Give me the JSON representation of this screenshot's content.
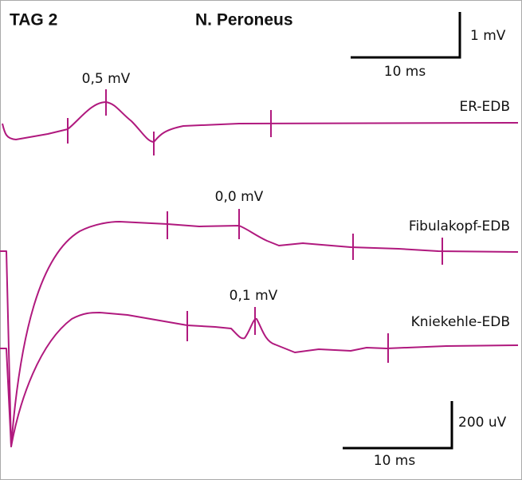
{
  "header": {
    "title": "TAG 2",
    "nerve": "N. Peroneus"
  },
  "scale_top": {
    "amplitude": "1 mV",
    "time": "10 ms"
  },
  "traces": [
    {
      "name": "ER-EDB",
      "amplitude": "0,5 mV"
    },
    {
      "name": "Fibulakopf-EDB",
      "amplitude": "0,0 mV"
    },
    {
      "name": "Kniekehle-EDB",
      "amplitude": "0,1 mV"
    }
  ],
  "scale_bottom": {
    "amplitude": "200 uV",
    "time": "10 ms"
  }
}
